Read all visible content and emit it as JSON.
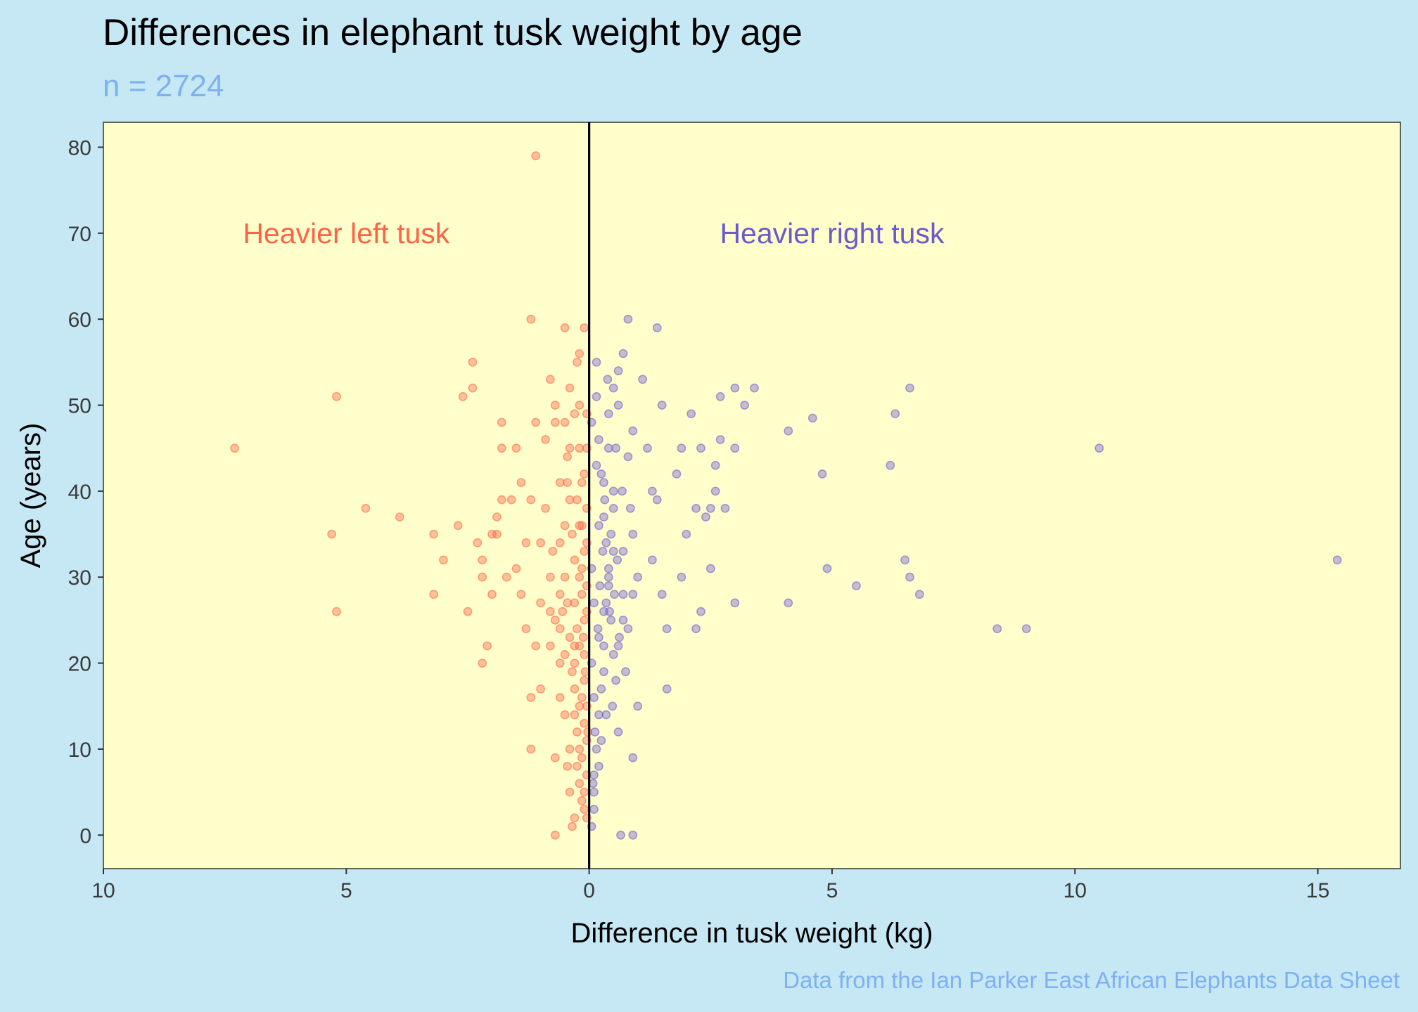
{
  "title": "Differences in elephant tusk weight by age",
  "subtitle": "n = 2724",
  "caption": "Data from the Ian Parker East African Elephants Data Sheet",
  "colors": {
    "left": "#ff6347",
    "right": "#6a5acd",
    "panel": "#ffffcc",
    "background": "#c6e8f4",
    "subtitle": "#7fb1f2"
  },
  "chart_data": {
    "type": "scatter",
    "xlabel": "Difference in tusk weight (kg)",
    "ylabel": "Age (years)",
    "xlim": [
      -10,
      16.7
    ],
    "ylim": [
      -3.9,
      82.9
    ],
    "x_ticks": [
      -10,
      -5,
      0,
      5,
      10,
      15
    ],
    "x_tick_labels": [
      "10",
      "5",
      "0",
      "5",
      "10",
      "15"
    ],
    "y_ticks": [
      0,
      10,
      20,
      30,
      40,
      50,
      60,
      70,
      80
    ],
    "y_tick_labels": [
      "0",
      "10",
      "20",
      "30",
      "40",
      "50",
      "60",
      "70",
      "80"
    ],
    "reference_line_x": 0,
    "grid": false,
    "annotations": [
      {
        "text": "Heavier left tusk",
        "x": -5,
        "y": 70,
        "color": "#ff6347"
      },
      {
        "text": "Heavier right tusk",
        "x": 5,
        "y": 70,
        "color": "#6a5acd"
      }
    ],
    "series": [
      {
        "color": "#ff6347",
        "points": [
          [
            -7.3,
            45
          ],
          [
            -5.2,
            51
          ],
          [
            -4.6,
            38
          ],
          [
            -3.9,
            37
          ],
          [
            -5.3,
            35
          ],
          [
            -5.2,
            26
          ],
          [
            -3.2,
            35
          ],
          [
            -3.2,
            28
          ],
          [
            -3.0,
            32
          ],
          [
            -2.7,
            36
          ],
          [
            -2.5,
            26
          ],
          [
            -2.6,
            51
          ],
          [
            -2.4,
            55
          ],
          [
            -2.4,
            52
          ],
          [
            -2.3,
            34
          ],
          [
            -2.2,
            30
          ],
          [
            -2.2,
            32
          ],
          [
            -2.1,
            22
          ],
          [
            -2.2,
            20
          ],
          [
            -2.0,
            28
          ],
          [
            -2.0,
            35
          ],
          [
            -1.9,
            37
          ],
          [
            -1.9,
            35
          ],
          [
            -1.8,
            39
          ],
          [
            -1.8,
            48
          ],
          [
            -1.8,
            45
          ],
          [
            -1.7,
            30
          ],
          [
            -1.6,
            39
          ],
          [
            -1.5,
            45
          ],
          [
            -1.5,
            31
          ],
          [
            -1.4,
            41
          ],
          [
            -1.4,
            28
          ],
          [
            -1.3,
            34
          ],
          [
            -1.3,
            24
          ],
          [
            -1.2,
            39
          ],
          [
            -1.2,
            60
          ],
          [
            -1.1,
            48
          ],
          [
            -1.1,
            22
          ],
          [
            -1.0,
            34
          ],
          [
            -1.0,
            17
          ],
          [
            -1.0,
            27
          ],
          [
            -0.9,
            46
          ],
          [
            -0.9,
            38
          ],
          [
            -0.8,
            53
          ],
          [
            -0.8,
            30
          ],
          [
            -0.8,
            22
          ],
          [
            -0.7,
            48
          ],
          [
            -0.6,
            41
          ],
          [
            -0.6,
            16
          ],
          [
            -0.6,
            34
          ],
          [
            -1.1,
            79
          ],
          [
            -1.2,
            16
          ],
          [
            -1.2,
            10
          ],
          [
            -0.7,
            9
          ],
          [
            -0.7,
            50
          ],
          [
            -0.5,
            59
          ],
          [
            -0.5,
            48
          ],
          [
            -0.45,
            44
          ],
          [
            -0.4,
            52
          ],
          [
            -0.4,
            39
          ],
          [
            -0.35,
            35
          ],
          [
            -0.3,
            32
          ],
          [
            -0.3,
            27
          ],
          [
            -0.3,
            22
          ],
          [
            -0.25,
            55
          ],
          [
            -0.2,
            56
          ],
          [
            -0.2,
            50
          ],
          [
            -0.2,
            45
          ],
          [
            -0.2,
            30
          ],
          [
            -0.15,
            41
          ],
          [
            -0.15,
            36
          ],
          [
            -0.1,
            59
          ],
          [
            -0.1,
            42
          ],
          [
            -0.1,
            33
          ],
          [
            -0.05,
            49
          ],
          [
            -0.05,
            38
          ],
          [
            -0.05,
            26
          ],
          [
            -0.7,
            25
          ],
          [
            -0.6,
            24
          ],
          [
            -0.55,
            26
          ],
          [
            -0.5,
            30
          ],
          [
            -0.5,
            21
          ],
          [
            -0.45,
            27
          ],
          [
            -0.4,
            23
          ],
          [
            -0.35,
            19
          ],
          [
            -0.3,
            17
          ],
          [
            -0.3,
            14
          ],
          [
            -0.25,
            12
          ],
          [
            -0.25,
            8
          ],
          [
            -0.2,
            22
          ],
          [
            -0.2,
            10
          ],
          [
            -0.2,
            6
          ],
          [
            -0.15,
            4
          ],
          [
            -0.15,
            16
          ],
          [
            -0.1,
            13
          ],
          [
            -0.1,
            3
          ],
          [
            -0.05,
            2
          ],
          [
            -0.05,
            7
          ],
          [
            -0.05,
            11
          ],
          [
            -0.1,
            18
          ],
          [
            -0.1,
            25
          ],
          [
            -0.15,
            28
          ],
          [
            -0.2,
            15
          ],
          [
            -0.3,
            20
          ],
          [
            -0.4,
            10
          ],
          [
            -0.4,
            5
          ],
          [
            -0.35,
            1
          ],
          [
            -0.7,
            0
          ],
          [
            -0.6,
            20
          ],
          [
            -0.5,
            14
          ],
          [
            -0.45,
            8
          ],
          [
            -0.3,
            2
          ],
          [
            -0.25,
            24
          ],
          [
            -0.15,
            9
          ],
          [
            -0.1,
            5
          ],
          [
            -0.1,
            21
          ],
          [
            -0.05,
            15
          ],
          [
            -0.05,
            29
          ],
          [
            -0.05,
            34
          ],
          [
            -0.05,
            45
          ],
          [
            -0.8,
            26
          ],
          [
            -0.75,
            33
          ],
          [
            -0.6,
            28
          ],
          [
            -0.5,
            36
          ],
          [
            -0.45,
            41
          ],
          [
            -0.4,
            45
          ],
          [
            -0.3,
            49
          ],
          [
            -0.25,
            39
          ],
          [
            -0.2,
            36
          ],
          [
            -0.15,
            31
          ],
          [
            -0.12,
            23
          ],
          [
            -0.08,
            19
          ],
          [
            -0.03,
            12
          ]
        ]
      },
      {
        "color": "#6a5acd",
        "points": [
          [
            15.4,
            32
          ],
          [
            10.5,
            45
          ],
          [
            9.0,
            24
          ],
          [
            8.4,
            24
          ],
          [
            6.8,
            28
          ],
          [
            6.6,
            52
          ],
          [
            6.6,
            30
          ],
          [
            6.5,
            32
          ],
          [
            6.3,
            49
          ],
          [
            6.2,
            43
          ],
          [
            5.5,
            29
          ],
          [
            4.9,
            31
          ],
          [
            4.8,
            42
          ],
          [
            4.6,
            48.5
          ],
          [
            4.1,
            47
          ],
          [
            4.1,
            27
          ],
          [
            3.4,
            52
          ],
          [
            3.2,
            50
          ],
          [
            3.0,
            52
          ],
          [
            3.0,
            45
          ],
          [
            3.0,
            27
          ],
          [
            2.8,
            38
          ],
          [
            2.7,
            46
          ],
          [
            2.7,
            51
          ],
          [
            2.6,
            40
          ],
          [
            2.6,
            43
          ],
          [
            2.5,
            38
          ],
          [
            2.5,
            31
          ],
          [
            2.4,
            37
          ],
          [
            2.3,
            45
          ],
          [
            2.3,
            26
          ],
          [
            2.2,
            24
          ],
          [
            2.2,
            38
          ],
          [
            2.1,
            49
          ],
          [
            2.0,
            35
          ],
          [
            1.9,
            30
          ],
          [
            1.9,
            45
          ],
          [
            1.8,
            42
          ],
          [
            1.6,
            24
          ],
          [
            1.6,
            17
          ],
          [
            1.5,
            50
          ],
          [
            1.5,
            28
          ],
          [
            1.4,
            59
          ],
          [
            1.4,
            39
          ],
          [
            1.3,
            40
          ],
          [
            1.3,
            32
          ],
          [
            1.2,
            45
          ],
          [
            1.1,
            53
          ],
          [
            1.0,
            30
          ],
          [
            1.0,
            15
          ],
          [
            0.9,
            28
          ],
          [
            0.9,
            35
          ],
          [
            0.9,
            47
          ],
          [
            0.8,
            60
          ],
          [
            0.8,
            44
          ],
          [
            0.7,
            56
          ],
          [
            0.7,
            25
          ],
          [
            0.6,
            54
          ],
          [
            0.6,
            22
          ],
          [
            0.5,
            52
          ],
          [
            0.5,
            38
          ],
          [
            0.5,
            33
          ],
          [
            0.4,
            49
          ],
          [
            0.4,
            45
          ],
          [
            0.4,
            30
          ],
          [
            0.35,
            14
          ],
          [
            0.3,
            41
          ],
          [
            0.3,
            26
          ],
          [
            0.3,
            19
          ],
          [
            0.25,
            11
          ],
          [
            0.2,
            36
          ],
          [
            0.2,
            23
          ],
          [
            0.2,
            8
          ],
          [
            0.15,
            55
          ],
          [
            0.15,
            43
          ],
          [
            0.1,
            27
          ],
          [
            0.1,
            16
          ],
          [
            0.1,
            5
          ],
          [
            0.05,
            48
          ],
          [
            0.05,
            31
          ],
          [
            0.05,
            20
          ],
          [
            0.9,
            0
          ],
          [
            0.65,
            0
          ],
          [
            0.9,
            9
          ],
          [
            0.6,
            12
          ],
          [
            0.55,
            18
          ],
          [
            0.5,
            21
          ],
          [
            0.45,
            25
          ],
          [
            0.4,
            29
          ],
          [
            0.35,
            34
          ],
          [
            0.3,
            37
          ],
          [
            0.25,
            42
          ],
          [
            0.2,
            46
          ],
          [
            0.15,
            51
          ],
          [
            0.1,
            3
          ],
          [
            0.1,
            7
          ],
          [
            0.15,
            10
          ],
          [
            0.2,
            14
          ],
          [
            0.25,
            17
          ],
          [
            0.3,
            22
          ],
          [
            0.35,
            27
          ],
          [
            0.4,
            31
          ],
          [
            0.45,
            35
          ],
          [
            0.5,
            40
          ],
          [
            0.55,
            45
          ],
          [
            0.6,
            50
          ],
          [
            0.7,
            28
          ],
          [
            0.7,
            33
          ],
          [
            0.75,
            19
          ],
          [
            0.8,
            24
          ],
          [
            0.85,
            38
          ],
          [
            0.05,
            1
          ],
          [
            0.08,
            6
          ],
          [
            0.12,
            12
          ],
          [
            0.18,
            24
          ],
          [
            0.22,
            29
          ],
          [
            0.28,
            33
          ],
          [
            0.32,
            39
          ],
          [
            0.38,
            53
          ],
          [
            0.42,
            26
          ],
          [
            0.48,
            15
          ],
          [
            0.52,
            28
          ],
          [
            0.58,
            32
          ],
          [
            0.62,
            23
          ],
          [
            0.68,
            40
          ]
        ]
      }
    ]
  }
}
